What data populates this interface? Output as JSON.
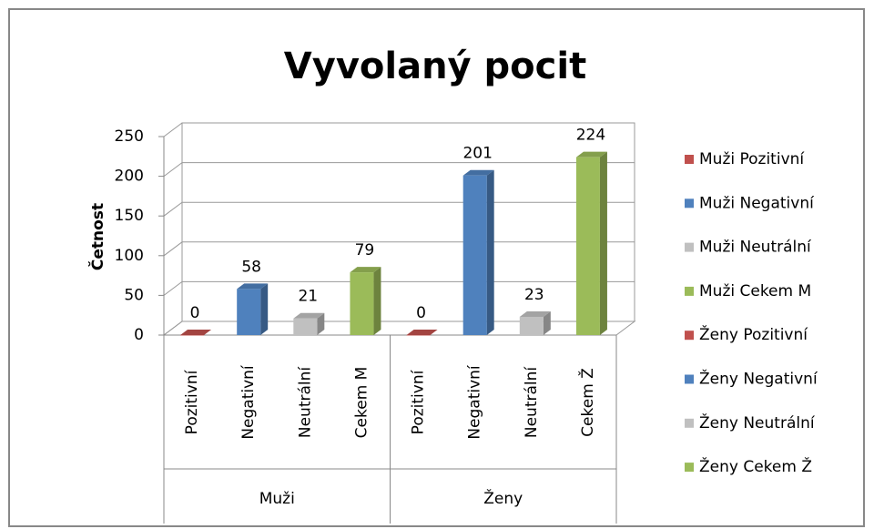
{
  "chart_data": {
    "type": "bar3d",
    "title": "Vyvolaný pocit",
    "ylabel": "Četnost",
    "groups": [
      "Muži",
      "Ženy"
    ],
    "categories": [
      "Pozitivní",
      "Negativní",
      "Neutrální",
      "Cekem M",
      "Pozitivní",
      "Negativní",
      "Neutrální",
      "Cekem Ž"
    ],
    "series": [
      {
        "name": "Muži Pozitivní",
        "color": "#c0504d",
        "values": [
          0,
          null,
          null,
          null,
          null,
          null,
          null,
          null
        ]
      },
      {
        "name": "Muži Negativní",
        "color": "#4f81bd",
        "values": [
          null,
          58,
          null,
          null,
          null,
          null,
          null,
          null
        ]
      },
      {
        "name": "Muži Neutrální",
        "color": "#c0c0c0",
        "values": [
          null,
          null,
          21,
          null,
          null,
          null,
          null,
          null
        ]
      },
      {
        "name": "Muži Cekem M",
        "color": "#9bbb59",
        "values": [
          null,
          null,
          null,
          79,
          null,
          null,
          null,
          null
        ]
      },
      {
        "name": "Ženy Pozitivní",
        "color": "#c0504d",
        "values": [
          null,
          null,
          null,
          null,
          0,
          null,
          null,
          null
        ]
      },
      {
        "name": "Ženy Negativní",
        "color": "#4f81bd",
        "values": [
          null,
          null,
          null,
          null,
          null,
          201,
          null,
          null
        ]
      },
      {
        "name": "Ženy Neutrální",
        "color": "#c0c0c0",
        "values": [
          null,
          null,
          null,
          null,
          null,
          null,
          23,
          null
        ]
      },
      {
        "name": "Ženy Cekem Ž",
        "color": "#9bbb59",
        "values": [
          null,
          null,
          null,
          null,
          null,
          null,
          null,
          224
        ]
      }
    ],
    "ylim": [
      0,
      250
    ],
    "yticks": [
      0,
      50,
      100,
      150,
      200,
      250
    ],
    "grid": true,
    "legend": "right"
  }
}
